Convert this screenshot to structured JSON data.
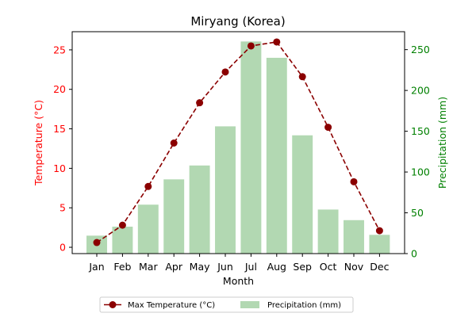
{
  "chart_data": {
    "type": "bar",
    "title": "Miryang (Korea)",
    "xlabel": "Month",
    "categories": [
      "Jan",
      "Feb",
      "Mar",
      "Apr",
      "May",
      "Jun",
      "Jul",
      "Aug",
      "Sep",
      "Oct",
      "Nov",
      "Dec"
    ],
    "left_axis": {
      "label": "Temperature (°C)",
      "ylim": [
        -0.8,
        27.3
      ],
      "ticks": [
        0,
        5,
        10,
        15,
        20,
        25
      ],
      "color": "#ff0000"
    },
    "right_axis": {
      "label": "Precipitation (mm)",
      "ylim": [
        0,
        272
      ],
      "ticks": [
        0,
        50,
        100,
        150,
        200,
        250
      ],
      "color": "#008000"
    },
    "series": [
      {
        "name": "Max Temperature (°C)",
        "type": "line",
        "axis": "left",
        "style": "dashed",
        "marker": "circle",
        "color": "#8b0000",
        "values": [
          0.6,
          2.8,
          7.7,
          13.2,
          18.3,
          22.2,
          25.5,
          26.0,
          21.6,
          15.2,
          8.3,
          2.1
        ]
      },
      {
        "name": "Precipitation (mm)",
        "type": "bar",
        "axis": "right",
        "color": "#b2d8b2",
        "values": [
          22,
          33,
          60,
          91,
          108,
          156,
          260,
          240,
          145,
          54,
          41,
          23
        ]
      }
    ],
    "legend": {
      "placement": "bottom-center",
      "entries": [
        "Max Temperature (°C)",
        "Precipitation (mm)"
      ]
    },
    "grid": false
  }
}
